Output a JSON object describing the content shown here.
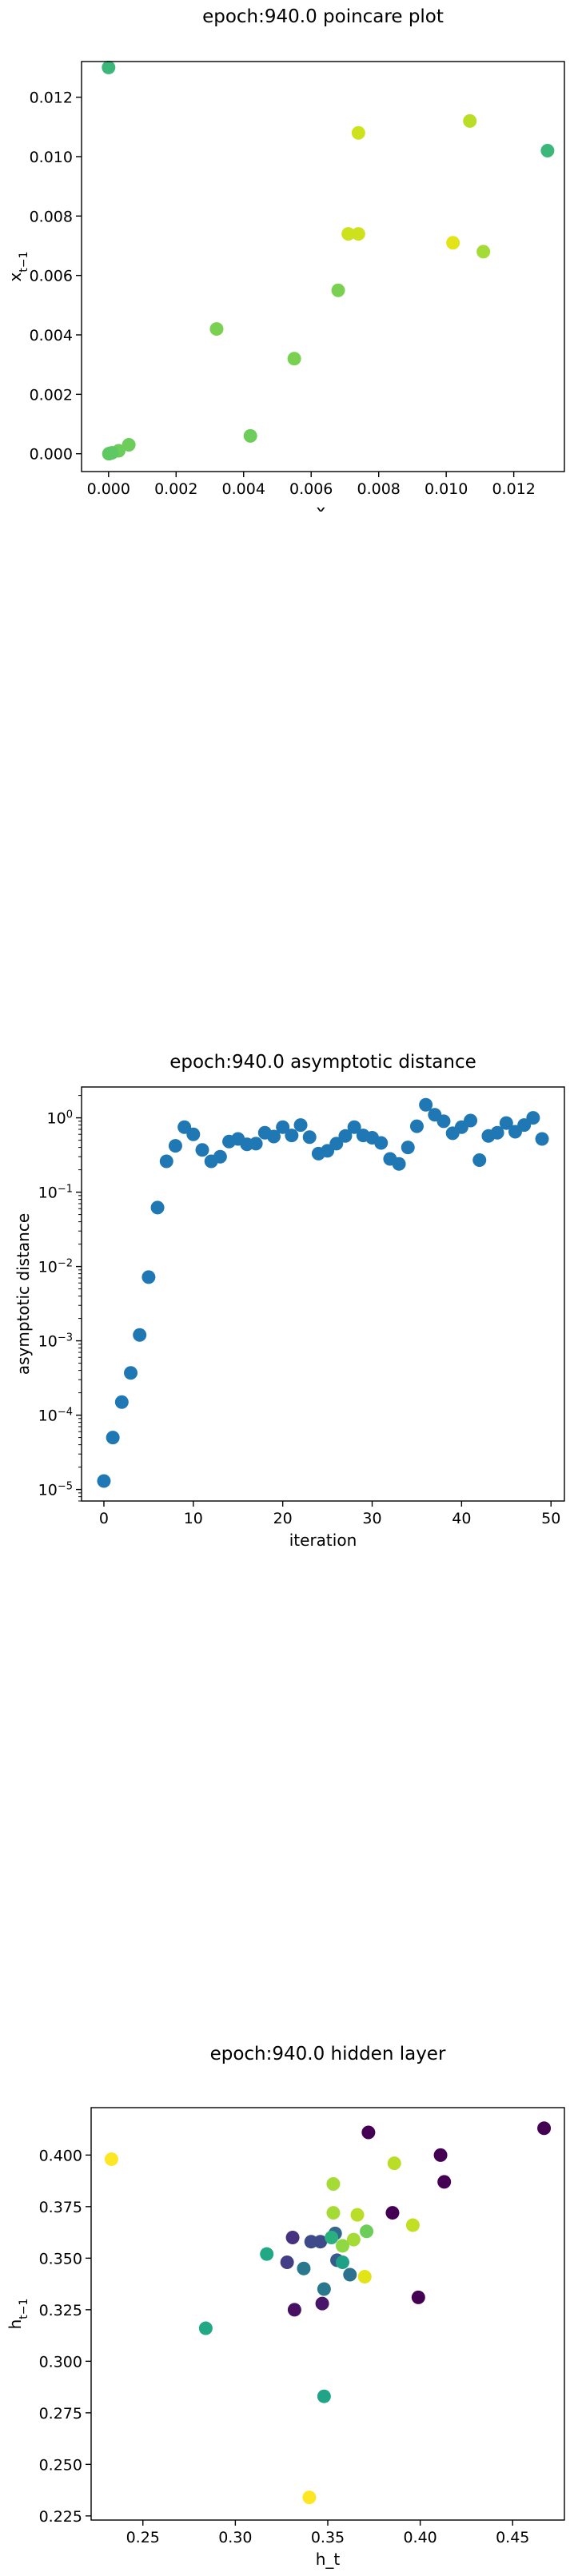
{
  "chart_data": [
    {
      "type": "scatter",
      "title": "epoch:940.0 poincare plot",
      "xlabel": "x_t",
      "ylabel": "x_{t-1}",
      "xlim": [
        -0.0008,
        0.0135
      ],
      "ylim": [
        -0.0006,
        0.0132
      ],
      "x_ticks": [
        "0.000",
        "0.002",
        "0.004",
        "0.006",
        "0.008",
        "0.010",
        "0.012"
      ],
      "y_ticks": [
        "0.000",
        "0.002",
        "0.004",
        "0.006",
        "0.008",
        "0.010",
        "0.012"
      ],
      "grid": false,
      "points": [
        {
          "x": 0.0,
          "y": 0.013,
          "color": "#3bb77a"
        },
        {
          "x": 0.013,
          "y": 0.0102,
          "color": "#3bb77a"
        },
        {
          "x": 0.0107,
          "y": 0.0112,
          "color": "#bade28"
        },
        {
          "x": 0.0074,
          "y": 0.0108,
          "color": "#cde11d"
        },
        {
          "x": 0.0071,
          "y": 0.0074,
          "color": "#cde11d"
        },
        {
          "x": 0.0074,
          "y": 0.0074,
          "color": "#cde11d"
        },
        {
          "x": 0.0102,
          "y": 0.0071,
          "color": "#e2e418"
        },
        {
          "x": 0.0111,
          "y": 0.0068,
          "color": "#a5db36"
        },
        {
          "x": 0.0068,
          "y": 0.0055,
          "color": "#7ad151"
        },
        {
          "x": 0.0032,
          "y": 0.0042,
          "color": "#7ad151"
        },
        {
          "x": 0.0055,
          "y": 0.0032,
          "color": "#7ad151"
        },
        {
          "x": 0.0042,
          "y": 0.0006,
          "color": "#6ccd5a"
        },
        {
          "x": 0.0006,
          "y": 0.0003,
          "color": "#6ccd5a"
        },
        {
          "x": 0.0003,
          "y": 0.0001,
          "color": "#6ccd5a"
        },
        {
          "x": 0.0001,
          "y": 3e-05,
          "color": "#5ec962"
        },
        {
          "x": 3e-05,
          "y": 1e-05,
          "color": "#5ec962"
        },
        {
          "x": 1e-05,
          "y": 0.0,
          "color": "#5ec962"
        }
      ]
    },
    {
      "type": "scatter",
      "title": "epoch:940.0 asymptotic distance",
      "xlabel": "iteration",
      "ylabel": "asymptotic distance",
      "yscale": "log",
      "xlim": [
        -2.5,
        51.5
      ],
      "ylim": [
        7e-06,
        2.6
      ],
      "x_ticks": [
        "0",
        "10",
        "20",
        "30",
        "40",
        "50"
      ],
      "y_ticks": [
        "10^-5",
        "10^-4",
        "10^-3",
        "10^-2",
        "10^-1",
        "10^0"
      ],
      "grid": false,
      "color": "#1f77b4",
      "x": [
        0,
        1,
        2,
        3,
        4,
        5,
        6,
        7,
        8,
        9,
        10,
        11,
        12,
        13,
        14,
        15,
        16,
        17,
        18,
        19,
        20,
        21,
        22,
        23,
        24,
        25,
        26,
        27,
        28,
        29,
        30,
        31,
        32,
        33,
        34,
        35,
        36,
        37,
        38,
        39,
        40,
        41,
        42,
        43,
        44,
        45,
        46,
        47,
        48,
        49
      ],
      "y": [
        1.3e-05,
        5e-05,
        0.00015,
        0.00037,
        0.0012,
        0.0072,
        0.062,
        0.26,
        0.42,
        0.75,
        0.6,
        0.37,
        0.26,
        0.3,
        0.48,
        0.52,
        0.44,
        0.45,
        0.63,
        0.56,
        0.75,
        0.58,
        0.8,
        0.55,
        0.33,
        0.36,
        0.45,
        0.57,
        0.75,
        0.58,
        0.54,
        0.46,
        0.28,
        0.24,
        0.4,
        0.77,
        1.5,
        1.1,
        0.9,
        0.62,
        0.75,
        0.92,
        0.27,
        0.57,
        0.63,
        0.85,
        0.65,
        0.8,
        1.0,
        0.52
      ]
    },
    {
      "type": "scatter",
      "title": "epoch:940.0 hidden layer",
      "xlabel": "h_t",
      "ylabel": "h_{t-1}",
      "xlim": [
        0.222,
        0.478
      ],
      "ylim": [
        0.223,
        0.423
      ],
      "x_ticks": [
        "0.25",
        "0.30",
        "0.35",
        "0.40",
        "0.45"
      ],
      "y_ticks": [
        "0.225",
        "0.250",
        "0.275",
        "0.300",
        "0.325",
        "0.350",
        "0.375",
        "0.400"
      ],
      "grid": false,
      "points": [
        {
          "x": 0.467,
          "y": 0.413,
          "color": "#440154"
        },
        {
          "x": 0.372,
          "y": 0.411,
          "color": "#440154"
        },
        {
          "x": 0.411,
          "y": 0.4,
          "color": "#440154"
        },
        {
          "x": 0.413,
          "y": 0.387,
          "color": "#440154"
        },
        {
          "x": 0.385,
          "y": 0.372,
          "color": "#440154"
        },
        {
          "x": 0.399,
          "y": 0.331,
          "color": "#440154"
        },
        {
          "x": 0.347,
          "y": 0.328,
          "color": "#481668"
        },
        {
          "x": 0.332,
          "y": 0.325,
          "color": "#471063"
        },
        {
          "x": 0.233,
          "y": 0.398,
          "color": "#fde725"
        },
        {
          "x": 0.386,
          "y": 0.396,
          "color": "#bade28"
        },
        {
          "x": 0.353,
          "y": 0.386,
          "color": "#a5db36"
        },
        {
          "x": 0.353,
          "y": 0.372,
          "color": "#a5db36"
        },
        {
          "x": 0.366,
          "y": 0.371,
          "color": "#bade28"
        },
        {
          "x": 0.396,
          "y": 0.366,
          "color": "#c2df23"
        },
        {
          "x": 0.371,
          "y": 0.363,
          "color": "#6ccd5a"
        },
        {
          "x": 0.354,
          "y": 0.362,
          "color": "#31688e"
        },
        {
          "x": 0.346,
          "y": 0.358,
          "color": "#3e4a89"
        },
        {
          "x": 0.341,
          "y": 0.358,
          "color": "#3e4a89"
        },
        {
          "x": 0.364,
          "y": 0.359,
          "color": "#a5db36"
        },
        {
          "x": 0.358,
          "y": 0.356,
          "color": "#8fd744"
        },
        {
          "x": 0.352,
          "y": 0.36,
          "color": "#2ab07f"
        },
        {
          "x": 0.331,
          "y": 0.36,
          "color": "#46327e"
        },
        {
          "x": 0.317,
          "y": 0.352,
          "color": "#22a884"
        },
        {
          "x": 0.328,
          "y": 0.348,
          "color": "#433e85"
        },
        {
          "x": 0.355,
          "y": 0.349,
          "color": "#365c8d"
        },
        {
          "x": 0.358,
          "y": 0.348,
          "color": "#1fa187"
        },
        {
          "x": 0.337,
          "y": 0.345,
          "color": "#2a788e"
        },
        {
          "x": 0.362,
          "y": 0.342,
          "color": "#2c728e"
        },
        {
          "x": 0.37,
          "y": 0.341,
          "color": "#e2e418"
        },
        {
          "x": 0.348,
          "y": 0.335,
          "color": "#2a788e"
        },
        {
          "x": 0.284,
          "y": 0.316,
          "color": "#22a884"
        },
        {
          "x": 0.348,
          "y": 0.283,
          "color": "#20a386"
        },
        {
          "x": 0.34,
          "y": 0.234,
          "color": "#fde725"
        }
      ]
    }
  ]
}
